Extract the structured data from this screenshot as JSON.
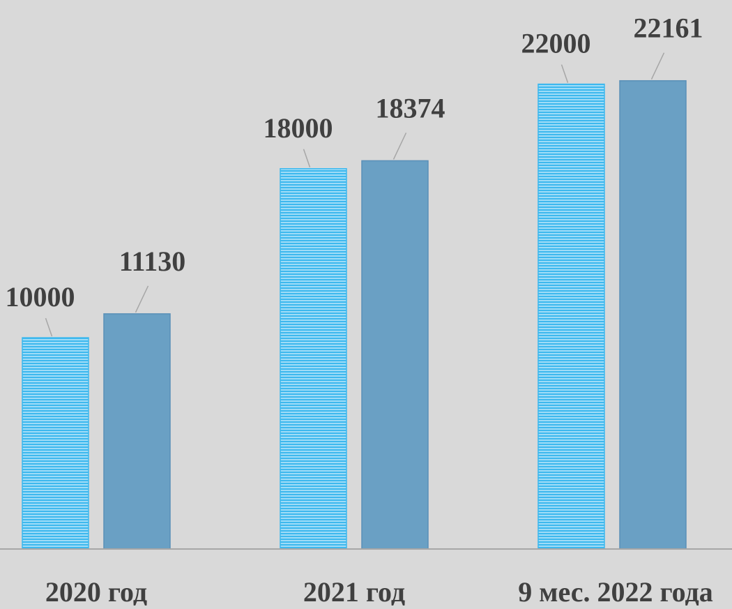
{
  "chart_data": {
    "type": "bar",
    "categories": [
      "2020 год",
      "2021 год",
      "9 мес. 2022 года"
    ],
    "series": [
      {
        "values": [
          10000,
          18000,
          22000
        ],
        "color": "#3db8ee",
        "pattern": "horizontal-lines"
      },
      {
        "values": [
          11130,
          18374,
          22161
        ],
        "color": "#6aa0c4",
        "pattern": "solid"
      }
    ],
    "data_labels": [
      [
        "10000",
        "18000",
        "22000"
      ],
      [
        "11130",
        "18374",
        "22161"
      ]
    ],
    "ylim": [
      0,
      24000
    ],
    "grid": false,
    "legend": "none",
    "xlabel": "",
    "ylabel": ""
  },
  "colors": {
    "background": "#d9d9d9",
    "axis": "#a6a6a6",
    "label_text": "#404040",
    "leader_line": "#a6a6a6"
  }
}
